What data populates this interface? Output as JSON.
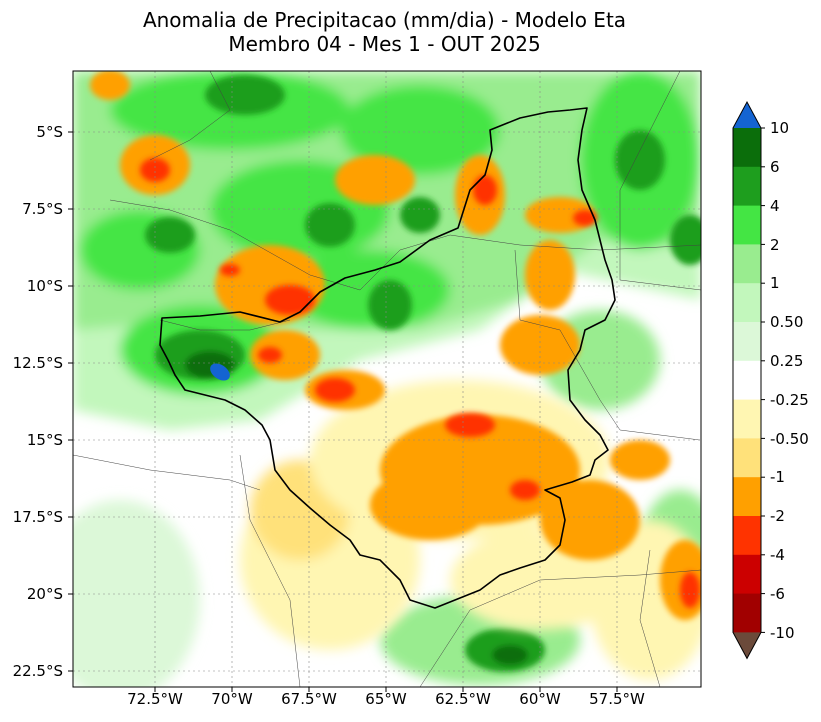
{
  "title": {
    "line1": "Anomalia de Precipitacao (mm/dia) - Modelo Eta",
    "line2": "Membro 04 - Mes 1 - OUT 2025"
  },
  "latitude_labels": [
    "5°S",
    "7.5°S",
    "10°S",
    "12.5°S",
    "15°S",
    "17.5°S",
    "20°S",
    "22.5°S"
  ],
  "longitude_labels": [
    "72.5°W",
    "70°W",
    "67.5°W",
    "65°W",
    "62.5°W",
    "60°W",
    "57.5°W"
  ],
  "colorbar": {
    "tick_labels": [
      "10",
      "6",
      "4",
      "2",
      "1",
      "0.50",
      "0.25",
      "-0.25",
      "-0.50",
      "-1",
      "-2",
      "-4",
      "-6",
      "-10"
    ],
    "colors": [
      "#0b6e0b",
      "#1e9e1e",
      "#44e544",
      "#99ec8f",
      "#c2f7bc",
      "#dcf8d8",
      "#ffffff",
      "#fff6b2",
      "#ffe17a",
      "#ffa000",
      "#ff3300",
      "#cc0000",
      "#a10000"
    ],
    "extend_max_color": "#1464d2",
    "extend_min_color": "#6b4a3a"
  }
}
